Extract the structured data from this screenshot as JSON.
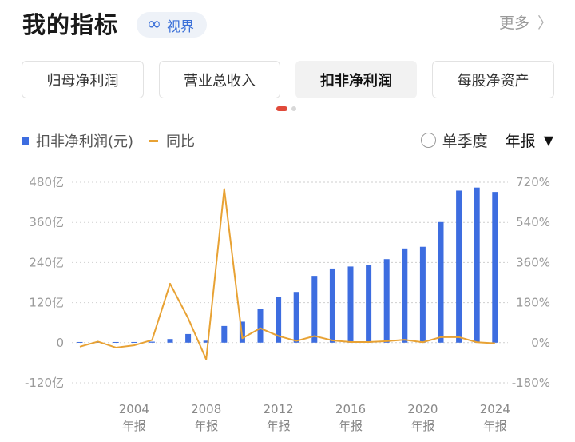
{
  "header": {
    "title": "我的指标",
    "view_label": "视界",
    "more_label": "更多",
    "more_chevron": "〉",
    "infinity_icon": "∞"
  },
  "tabs": [
    {
      "label": "归母净利润",
      "active": false
    },
    {
      "label": "营业总收入",
      "active": false
    },
    {
      "label": "扣非净利润",
      "active": true
    },
    {
      "label": "每股净资产",
      "active": false
    }
  ],
  "legend": {
    "bar_label": "扣非净利润(元)",
    "line_label": "同比"
  },
  "controls": {
    "quarter_label": "单季度",
    "period_label": "年报",
    "caret": "▼"
  },
  "colors": {
    "bar": "#3d6de0",
    "line": "#e8a234",
    "accent_red": "#e04a3a",
    "grid": "#cfcfcf"
  },
  "chart_data": {
    "type": "bar+line",
    "x": [
      2001,
      2002,
      2003,
      2004,
      2005,
      2006,
      2007,
      2008,
      2009,
      2010,
      2011,
      2012,
      2013,
      2014,
      2015,
      2016,
      2017,
      2018,
      2019,
      2020,
      2021,
      2022,
      2023,
      2024
    ],
    "series": [
      {
        "name": "扣非净利润(元)",
        "type": "bar",
        "axis": "left",
        "unit": "亿",
        "values": [
          2,
          2,
          2,
          2,
          3,
          11,
          26,
          6,
          50,
          63,
          102,
          136,
          152,
          200,
          222,
          228,
          233,
          250,
          282,
          287,
          361,
          455,
          464,
          451
        ]
      },
      {
        "name": "同比",
        "type": "line",
        "axis": "right",
        "unit": "%",
        "values": [
          -18,
          5,
          -22,
          -12,
          12,
          265,
          110,
          -75,
          690,
          20,
          65,
          30,
          8,
          30,
          10,
          3,
          3,
          7,
          13,
          2,
          25,
          25,
          2,
          -3
        ]
      }
    ],
    "y_left": {
      "ticks": [
        "480亿",
        "360亿",
        "240亿",
        "120亿",
        "0",
        "-120亿"
      ],
      "min": -120,
      "max": 480
    },
    "y_right": {
      "ticks": [
        "720%",
        "540%",
        "360%",
        "180%",
        "0%",
        "-180%"
      ],
      "min": -180,
      "max": 720
    },
    "x_tick_labels": [
      {
        "year": 2004,
        "line1": "2004",
        "line2": "年报"
      },
      {
        "year": 2008,
        "line1": "2008",
        "line2": "年报"
      },
      {
        "year": 2012,
        "line1": "2012",
        "line2": "年报"
      },
      {
        "year": 2016,
        "line1": "2016",
        "line2": "年报"
      },
      {
        "year": 2020,
        "line1": "2020",
        "line2": "年报"
      },
      {
        "year": 2024,
        "line1": "2024",
        "line2": "年报"
      }
    ],
    "grid": true
  }
}
